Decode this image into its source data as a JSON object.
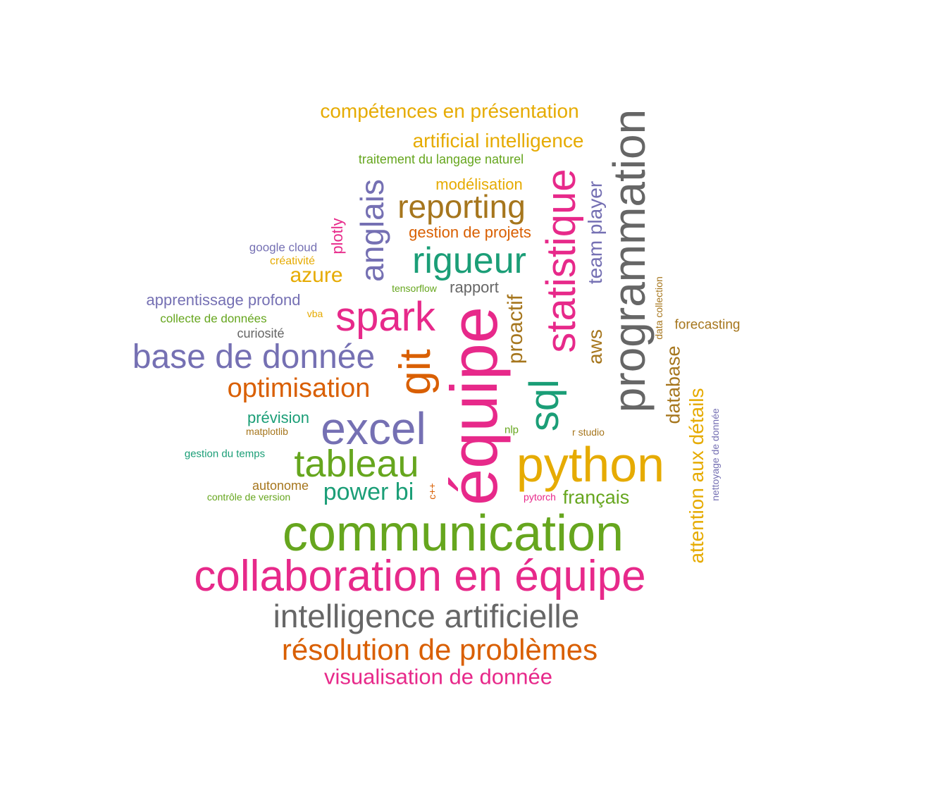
{
  "palette": {
    "teal": "#1b9e77",
    "orange": "#d95f02",
    "purple": "#7570b3",
    "pink": "#e7298a",
    "green": "#66a61e",
    "gold": "#e6ab02",
    "brown": "#a6761d",
    "gray": "#666666"
  },
  "words": {
    "equipe": "équipe",
    "communication": "communication",
    "collaboration": "collaboration en équipe",
    "python": "python",
    "programmation": "programmation",
    "excel": "excel",
    "statistique": "statistique",
    "git": "git",
    "tableau": "tableau",
    "spark": "spark",
    "intelligence_artificielle": "intelligence artificielle",
    "resolution": "résolution de problèmes",
    "base_de_donnee": "base de donnée",
    "sql": "sql",
    "rigueur": "rigueur",
    "anglais": "anglais",
    "reporting": "reporting",
    "optimisation": "optimisation",
    "visualisation": "visualisation de donnée",
    "power_bi": "power bi",
    "attention": "attention aux détails",
    "competences_presentation": "compétences en présentation",
    "artificial_intelligence": "artificial intelligence",
    "proactif": "proactif",
    "team_player": "team player",
    "azure": "azure",
    "database": "database",
    "aws": "aws",
    "francais": "français",
    "gestion_projets": "gestion de projets",
    "modelisation": "modélisation",
    "apprentissage_profond": "apprentissage profond",
    "plotly": "plotly",
    "prevision": "prévision",
    "rapport": "rapport",
    "forecasting": "forecasting",
    "traitement_langage": "traitement du langage naturel",
    "autonome": "autonome",
    "curiosite": "curiosité",
    "google_cloud": "google cloud",
    "collecte": "collecte de données",
    "creativite": "créativité",
    "gestion_temps": "gestion du temps",
    "nettoyage": "nettoyage de donnée",
    "data_collection": "data collection",
    "controle_version": "contrôle de version",
    "cpp": "c++",
    "matplotlib": "matplotlib",
    "tensorflow": "tensorflow",
    "pytorch": "pytorch",
    "nlp": "nlp",
    "r_studio": "r studio",
    "vba": "vba"
  }
}
